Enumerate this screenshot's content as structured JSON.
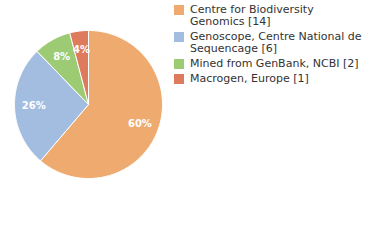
{
  "chart_data": {
    "type": "pie",
    "categories": [
      "Centre for Biodiversity Genomics [14]",
      "Genoscope, Centre National de Sequencage [6]",
      "Mined from GenBank, NCBI [2]",
      "Macrogen, Europe [1]"
    ],
    "values": [
      60,
      26,
      8,
      4
    ],
    "value_labels": [
      "60%",
      "26%",
      "8%",
      "4%"
    ],
    "colors": [
      "#efab6f",
      "#a3bde0",
      "#9ccb74",
      "#df7b5d"
    ],
    "data_labels": true,
    "legend": "right"
  }
}
